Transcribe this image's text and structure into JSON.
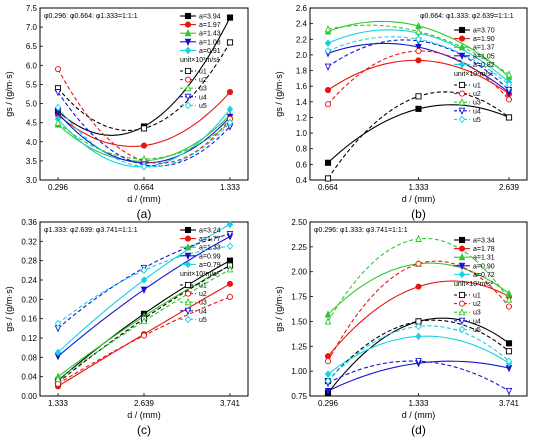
{
  "chart_data": [
    {
      "type": "line",
      "caption": "(a)",
      "annotation": "φ0.296: φ0.664: φ1.333=1:1:1",
      "xlabel": "d / (mm)",
      "ylabel": "gs / (g/m·s)",
      "categories": [
        "0.296",
        "0.664",
        "1.333"
      ],
      "ylim": [
        3.0,
        7.5
      ],
      "yticks": [
        "3.0",
        "3.5",
        "4.0",
        "4.5",
        "5.0",
        "5.5",
        "6.0",
        "6.5",
        "7.0",
        "7.5"
      ],
      "unit": "unit×10³m/s²",
      "series": [
        {
          "name": "a=3.94",
          "style": "solid",
          "color": "#000000",
          "marker": "square",
          "values": [
            4.8,
            4.4,
            7.25
          ]
        },
        {
          "name": "a=1.97",
          "style": "solid",
          "color": "#e8140f",
          "marker": "circle",
          "values": [
            4.7,
            3.9,
            5.3
          ]
        },
        {
          "name": "a=1.43",
          "style": "solid",
          "color": "#2ec82e",
          "marker": "triangle",
          "values": [
            4.45,
            3.5,
            4.7
          ]
        },
        {
          "name": "a=1.08",
          "style": "solid",
          "color": "#1414d2",
          "marker": "tri-down",
          "values": [
            4.75,
            3.45,
            4.65
          ]
        },
        {
          "name": "a=0.91",
          "style": "solid",
          "color": "#14d2e6",
          "marker": "diamond",
          "values": [
            4.6,
            3.35,
            4.85
          ]
        },
        {
          "name": "u1",
          "style": "dashed",
          "color": "#000000",
          "marker": "square-open",
          "values": [
            5.4,
            4.35,
            6.6
          ]
        },
        {
          "name": "u2",
          "style": "dashed",
          "color": "#e8140f",
          "marker": "circle-open",
          "values": [
            5.9,
            3.5,
            4.6
          ]
        },
        {
          "name": "u3",
          "style": "dashed",
          "color": "#2ec82e",
          "marker": "triangle-open",
          "values": [
            4.5,
            3.55,
            4.5
          ]
        },
        {
          "name": "u4",
          "style": "dashed",
          "color": "#1414d2",
          "marker": "tri-down-open",
          "values": [
            5.3,
            3.4,
            4.4
          ]
        },
        {
          "name": "u5",
          "style": "dashed",
          "color": "#14d2e6",
          "marker": "diamond-open",
          "values": [
            4.9,
            3.35,
            4.5
          ]
        }
      ]
    },
    {
      "type": "line",
      "caption": "(b)",
      "annotation": "φ0.664: φ1.333: φ2.639=1:1:1",
      "xlabel": "d / (mm)",
      "ylabel": "gs / (g/m·s)",
      "categories": [
        "0.664",
        "1.333",
        "2.639"
      ],
      "ylim": [
        0.4,
        2.6
      ],
      "yticks": [
        "0.4",
        "0.6",
        "0.8",
        "1.0",
        "1.2",
        "1.4",
        "1.6",
        "1.8",
        "2.0",
        "2.2",
        "2.4",
        "2.6"
      ],
      "unit": "unit×10³m/s²",
      "series": [
        {
          "name": "a=3.70",
          "style": "solid",
          "color": "#000000",
          "marker": "square",
          "values": [
            0.62,
            1.31,
            1.2
          ]
        },
        {
          "name": "a=1.90",
          "style": "solid",
          "color": "#e8140f",
          "marker": "circle",
          "values": [
            1.55,
            1.93,
            1.5
          ]
        },
        {
          "name": "a=1.37",
          "style": "solid",
          "color": "#2ec82e",
          "marker": "triangle",
          "values": [
            2.3,
            2.37,
            1.72
          ]
        },
        {
          "name": "a=1.05",
          "style": "solid",
          "color": "#1414d2",
          "marker": "tri-down",
          "values": [
            2.02,
            2.1,
            1.52
          ]
        },
        {
          "name": "a=0.82",
          "style": "solid",
          "color": "#14d2e6",
          "marker": "diamond",
          "values": [
            2.15,
            2.28,
            1.65
          ]
        },
        {
          "name": "u1",
          "style": "dashed",
          "color": "#000000",
          "marker": "square-open",
          "values": [
            0.42,
            1.47,
            1.2
          ]
        },
        {
          "name": "u2",
          "style": "dashed",
          "color": "#e8140f",
          "marker": "circle-open",
          "values": [
            1.37,
            2.05,
            1.43
          ]
        },
        {
          "name": "u3",
          "style": "dashed",
          "color": "#2ec82e",
          "marker": "triangle-open",
          "values": [
            2.33,
            2.3,
            1.75
          ]
        },
        {
          "name": "u4",
          "style": "dashed",
          "color": "#1414d2",
          "marker": "tri-down-open",
          "values": [
            1.85,
            2.18,
            1.55
          ]
        },
        {
          "name": "u5",
          "style": "dashed",
          "color": "#14d2e6",
          "marker": "diamond-open",
          "values": [
            2.05,
            2.2,
            1.62
          ]
        }
      ]
    },
    {
      "type": "line",
      "caption": "(c)",
      "annotation": "φ1.333: φ2.639: φ3.741=1:1:1",
      "xlabel": "d / (mm)",
      "ylabel": "gs / (g/m·s)",
      "categories": [
        "1.333",
        "2.639",
        "3.741"
      ],
      "ylim": [
        0.0,
        0.36
      ],
      "yticks": [
        "0.00",
        "0.04",
        "0.08",
        "0.12",
        "0.16",
        "0.20",
        "0.24",
        "0.28",
        "0.32",
        "0.36"
      ],
      "unit": "unit×10³m/s²",
      "series": [
        {
          "name": "a=3.24",
          "style": "solid",
          "color": "#000000",
          "marker": "square",
          "values": [
            0.032,
            0.17,
            0.28
          ]
        },
        {
          "name": "a=1.77",
          "style": "solid",
          "color": "#e8140f",
          "marker": "circle",
          "values": [
            0.02,
            0.128,
            0.232
          ]
        },
        {
          "name": "a=1.33",
          "style": "solid",
          "color": "#2ec82e",
          "marker": "triangle",
          "values": [
            0.04,
            0.165,
            0.27
          ]
        },
        {
          "name": "a=0.99",
          "style": "solid",
          "color": "#1414d2",
          "marker": "tri-down",
          "values": [
            0.082,
            0.22,
            0.33
          ]
        },
        {
          "name": "a=0.79",
          "style": "solid",
          "color": "#14d2e6",
          "marker": "diamond",
          "values": [
            0.09,
            0.24,
            0.355
          ]
        },
        {
          "name": "u1",
          "style": "dashed",
          "color": "#000000",
          "marker": "square-open",
          "values": [
            0.028,
            0.16,
            0.27
          ]
        },
        {
          "name": "u2",
          "style": "dashed",
          "color": "#e8140f",
          "marker": "circle-open",
          "values": [
            0.025,
            0.125,
            0.205
          ]
        },
        {
          "name": "u3",
          "style": "dashed",
          "color": "#2ec82e",
          "marker": "triangle-open",
          "values": [
            0.035,
            0.155,
            0.262
          ]
        },
        {
          "name": "u4",
          "style": "dashed",
          "color": "#1414d2",
          "marker": "tri-down-open",
          "values": [
            0.14,
            0.265,
            0.335
          ]
        },
        {
          "name": "u5",
          "style": "dashed",
          "color": "#14d2e6",
          "marker": "diamond-open",
          "values": [
            0.15,
            0.26,
            0.31
          ]
        }
      ]
    },
    {
      "type": "line",
      "caption": "(d)",
      "annotation": "φ0.296: φ1.333: φ3.741=1:1:1",
      "xlabel": "d / (mm)",
      "ylabel": "gs / (g/m·s)",
      "categories": [
        "0.296",
        "1.333",
        "3.741"
      ],
      "ylim": [
        0.75,
        2.5
      ],
      "yticks": [
        "0.75",
        "1.00",
        "1.25",
        "1.50",
        "1.75",
        "2.00",
        "2.25",
        "2.50"
      ],
      "unit": "unit×10³m/s²",
      "series": [
        {
          "name": "a=3.34",
          "style": "solid",
          "color": "#000000",
          "marker": "square",
          "values": [
            0.78,
            1.5,
            1.28
          ]
        },
        {
          "name": "a=1.78",
          "style": "solid",
          "color": "#e8140f",
          "marker": "circle",
          "values": [
            1.15,
            1.85,
            1.75
          ]
        },
        {
          "name": "a=1.31",
          "style": "solid",
          "color": "#2ec82e",
          "marker": "triangle",
          "values": [
            1.57,
            2.08,
            1.78
          ]
        },
        {
          "name": "a=0.90",
          "style": "solid",
          "color": "#1414d2",
          "marker": "tri-down",
          "values": [
            0.8,
            1.08,
            1.03
          ]
        },
        {
          "name": "a=0.72",
          "style": "solid",
          "color": "#14d2e6",
          "marker": "diamond",
          "values": [
            0.97,
            1.35,
            1.08
          ]
        },
        {
          "name": "u1",
          "style": "dashed",
          "color": "#000000",
          "marker": "square-open",
          "values": [
            0.9,
            1.5,
            1.2
          ]
        },
        {
          "name": "u2",
          "style": "dashed",
          "color": "#e8140f",
          "marker": "circle-open",
          "values": [
            1.1,
            2.08,
            1.65
          ]
        },
        {
          "name": "u3",
          "style": "dashed",
          "color": "#2ec82e",
          "marker": "triangle-open",
          "values": [
            1.5,
            2.33,
            1.72
          ]
        },
        {
          "name": "u4",
          "style": "dashed",
          "color": "#1414d2",
          "marker": "tri-down-open",
          "values": [
            0.88,
            1.1,
            0.8
          ]
        },
        {
          "name": "u5",
          "style": "dashed",
          "color": "#14d2e6",
          "marker": "diamond-open",
          "values": [
            0.9,
            1.45,
            1.1
          ]
        }
      ]
    }
  ]
}
